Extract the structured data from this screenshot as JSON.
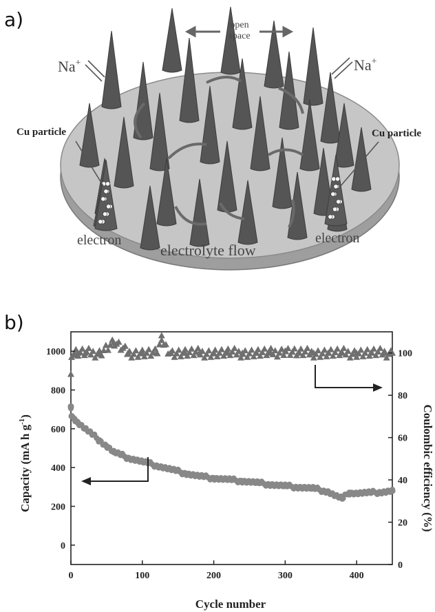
{
  "panel_a": {
    "label": "a)",
    "annotations": {
      "open_space_1": "open",
      "open_space_2": "space",
      "na_left": "Na",
      "na_right": "Na",
      "ion_sup": "+",
      "cu_left": "Cu particle",
      "cu_right": "Cu particle",
      "electron_left": "electron",
      "electron_right": "electron",
      "electrolyte_flow": "electrolyte flow"
    }
  },
  "panel_b": {
    "label": "b)"
  },
  "colors": {
    "capacity_series": "#888888",
    "efficiency_series": "#6f6f6f",
    "axis": "#222222",
    "cone": "#555555",
    "disk_top": "#c4c4c4",
    "disk_side": "#a8a8a8"
  },
  "chart_data": {
    "type": "scatter",
    "xlabel": "Cycle number",
    "ylabel_left": "Capacity (mA h g",
    "ylabel_left_sup": "-1",
    "ylabel_left_close": ")",
    "ylabel_right": "Coulombic efficiency (%)",
    "xlim": [
      0,
      450
    ],
    "ylim_left": [
      -100,
      1100
    ],
    "ylim_right": [
      0,
      110
    ],
    "x_ticks": [
      0,
      100,
      200,
      300,
      400
    ],
    "y_left_ticks": [
      0,
      200,
      400,
      600,
      800,
      1000
    ],
    "y_right_ticks": [
      0,
      20,
      40,
      60,
      80,
      100
    ],
    "series": [
      {
        "axis": "left",
        "marker": "circle",
        "x": [
          0,
          1,
          5,
          10,
          20,
          30,
          40,
          50,
          60,
          70,
          80,
          90,
          100,
          120,
          140,
          160,
          180,
          200,
          220,
          240,
          260,
          280,
          300,
          320,
          340,
          360,
          370,
          380,
          390,
          400,
          420,
          440,
          450
        ],
        "values": [
          715,
          665,
          650,
          630,
          600,
          570,
          540,
          510,
          480,
          465,
          450,
          440,
          430,
          410,
          390,
          370,
          355,
          345,
          338,
          330,
          322,
          312,
          305,
          298,
          292,
          275,
          255,
          240,
          270,
          268,
          270,
          275,
          280
        ]
      },
      {
        "axis": "right",
        "marker": "triangle",
        "x": [
          0,
          1,
          3,
          5,
          10,
          20,
          40,
          60,
          80,
          100,
          120,
          127,
          140,
          160,
          180,
          200,
          220,
          240,
          260,
          280,
          300,
          320,
          340,
          360,
          380,
          400,
          420,
          440,
          450
        ],
        "values": [
          90,
          98,
          99,
          100,
          100,
          100,
          100,
          105,
          100,
          100,
          100,
          106,
          100,
          100,
          100,
          100,
          100,
          100,
          100,
          100,
          101,
          100,
          100,
          100,
          100,
          100,
          100,
          100,
          100
        ]
      }
    ]
  }
}
